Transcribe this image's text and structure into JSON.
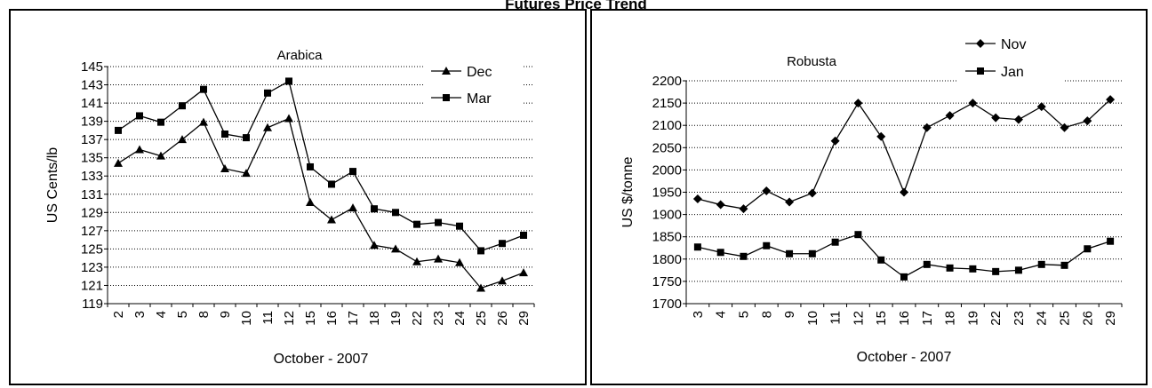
{
  "page_title": "Futures Price Trend",
  "chart_data": [
    {
      "type": "line",
      "title": "Arabica",
      "xlabel": "October - 2007",
      "ylabel": "US Cents/lb",
      "categories": [
        "2",
        "3",
        "4",
        "5",
        "8",
        "9",
        "10",
        "11",
        "12",
        "15",
        "16",
        "17",
        "18",
        "19",
        "22",
        "23",
        "24",
        "25",
        "26",
        "29"
      ],
      "ylim": [
        119,
        145
      ],
      "yticks": [
        119,
        121,
        123,
        125,
        127,
        129,
        131,
        133,
        135,
        137,
        139,
        141,
        143,
        145
      ],
      "grid": true,
      "legend": "top-right",
      "series": [
        {
          "name": "Dec",
          "marker": "triangle",
          "values": [
            134.4,
            135.9,
            135.2,
            137.0,
            138.9,
            133.8,
            133.3,
            138.3,
            139.3,
            130.1,
            128.2,
            129.5,
            125.4,
            125.0,
            123.6,
            123.9,
            123.5,
            120.7,
            121.5,
            122.4
          ]
        },
        {
          "name": "Mar",
          "marker": "square",
          "values": [
            138.0,
            139.6,
            138.9,
            140.7,
            142.5,
            137.6,
            137.2,
            142.1,
            143.4,
            134.0,
            132.1,
            133.5,
            129.4,
            129.0,
            127.7,
            127.9,
            127.5,
            124.8,
            125.6,
            126.5
          ]
        }
      ]
    },
    {
      "type": "line",
      "title": "Robusta",
      "xlabel": "October - 2007",
      "ylabel": "US $/tonne",
      "categories": [
        "3",
        "4",
        "5",
        "8",
        "9",
        "10",
        "11",
        "12",
        "15",
        "16",
        "17",
        "18",
        "19",
        "22",
        "23",
        "24",
        "25",
        "26",
        "29"
      ],
      "ylim": [
        1700,
        2200
      ],
      "yticks": [
        1700,
        1750,
        1800,
        1850,
        1900,
        1950,
        2000,
        2050,
        2100,
        2150,
        2200
      ],
      "grid": true,
      "legend": "top-right",
      "series": [
        {
          "name": "Nov",
          "marker": "diamond",
          "values": [
            1935,
            1922,
            1913,
            1953,
            1928,
            1948,
            2065,
            2150,
            2075,
            1950,
            2095,
            2122,
            2150,
            2117,
            2113,
            2142,
            2095,
            2110,
            2158
          ]
        },
        {
          "name": "Jan",
          "marker": "square",
          "values": [
            1827,
            1815,
            1806,
            1830,
            1812,
            1812,
            1838,
            1855,
            1798,
            1760,
            1788,
            1780,
            1778,
            1772,
            1775,
            1788,
            1786,
            1823,
            1840
          ]
        }
      ]
    }
  ]
}
